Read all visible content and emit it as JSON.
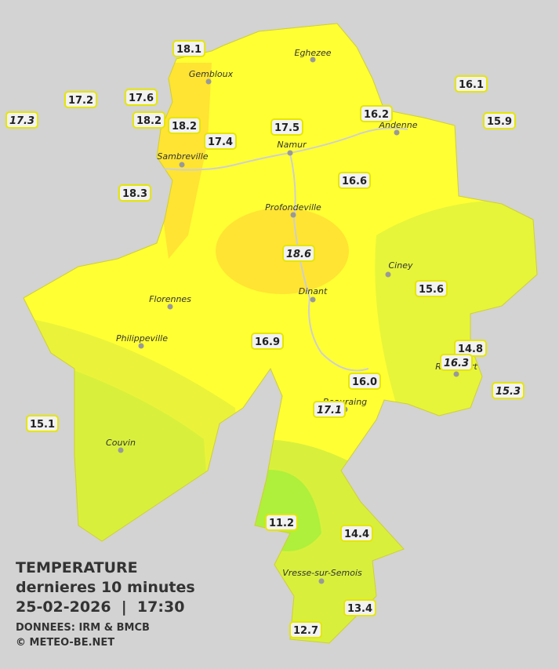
{
  "legend": {
    "title": "TEMPERATURE",
    "subtitle": "dernieres 10 minutes",
    "datetime": "25-02-2026  |  17:30",
    "source": "DONNEES: IRM & BMCB",
    "copyright": "© METEO-BE.NET"
  },
  "cities": [
    "Eghezee",
    "Gembloux",
    "Andenne",
    "Namur",
    "Sambreville",
    "Profondeville",
    "Ciney",
    "Dinant",
    "Florennes",
    "Philippeville",
    "Rochefort",
    "Beauraing",
    "Couvin",
    "Vresse-sur-Semois"
  ],
  "stations": [
    "18.1",
    "17.2",
    "17.6",
    "17.3",
    "18.2",
    "18.2",
    "17.4",
    "17.5",
    "16.2",
    "16.1",
    "15.9",
    "18.3",
    "16.6",
    "18.6",
    "15.6",
    "16.9",
    "14.8",
    "16.3",
    "16.0",
    "15.3",
    "17.1",
    "15.1",
    "11.2",
    "14.4",
    "13.4",
    "12.7"
  ]
}
